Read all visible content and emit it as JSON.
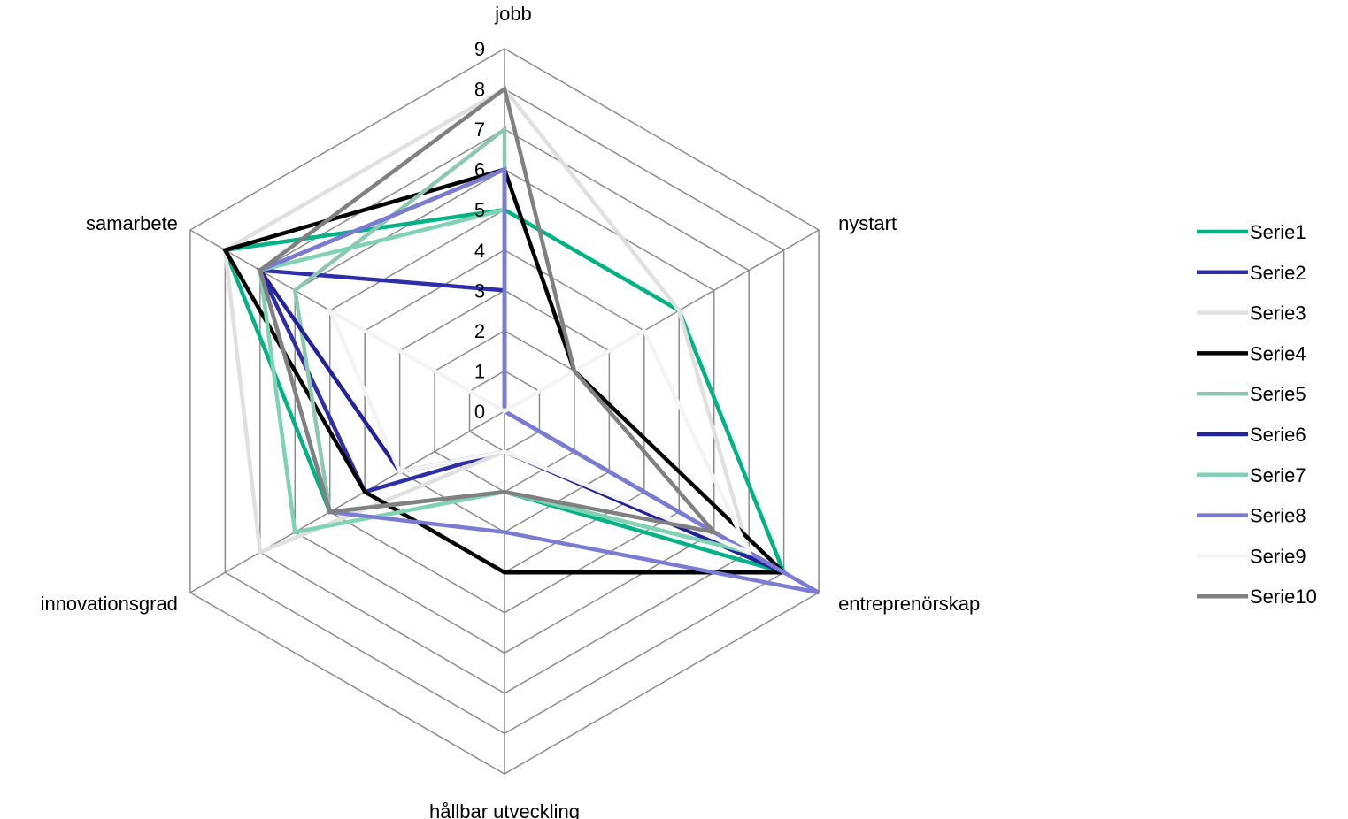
{
  "chart_data": {
    "type": "radar",
    "title": "",
    "axes": [
      "jobb",
      "nystart",
      "entreprenörskap",
      "hållbar utveckling",
      "innovationsgrad",
      "samarbete"
    ],
    "range": [
      0,
      9
    ],
    "ticks": [
      "0",
      "1",
      "2",
      "3",
      "4",
      "5",
      "6",
      "7",
      "8",
      "9"
    ],
    "grid": true,
    "legend_position": "right",
    "series": [
      {
        "name": "Serie1",
        "color": "#00b386",
        "values": [
          5,
          5,
          8,
          2,
          5,
          8
        ]
      },
      {
        "name": "Serie2",
        "color": "#2e2eaa",
        "values": [
          3,
          0,
          8,
          1,
          4,
          7
        ]
      },
      {
        "name": "Serie3",
        "color": "#e0e0e0",
        "values": [
          8,
          5,
          7,
          1,
          7,
          8
        ]
      },
      {
        "name": "Serie4",
        "color": "#000000",
        "values": [
          6,
          2,
          8,
          4,
          4,
          8
        ]
      },
      {
        "name": "Serie5",
        "color": "#8cc8b0",
        "values": [
          7,
          0,
          7,
          2,
          5,
          6
        ]
      },
      {
        "name": "Serie6",
        "color": "#22229a",
        "values": [
          6,
          0,
          8,
          1,
          3,
          7
        ]
      },
      {
        "name": "Serie7",
        "color": "#80d2b4",
        "values": [
          5,
          0,
          7,
          2,
          6,
          7
        ]
      },
      {
        "name": "Serie8",
        "color": "#7b7bd4",
        "values": [
          6,
          0,
          9,
          3,
          5,
          7
        ]
      },
      {
        "name": "Serie9",
        "color": "#f4f4f4",
        "values": [
          0,
          4,
          7,
          1,
          3,
          5
        ]
      },
      {
        "name": "Serie10",
        "color": "#808080",
        "values": [
          8,
          2,
          6,
          2,
          5,
          7
        ]
      }
    ]
  }
}
